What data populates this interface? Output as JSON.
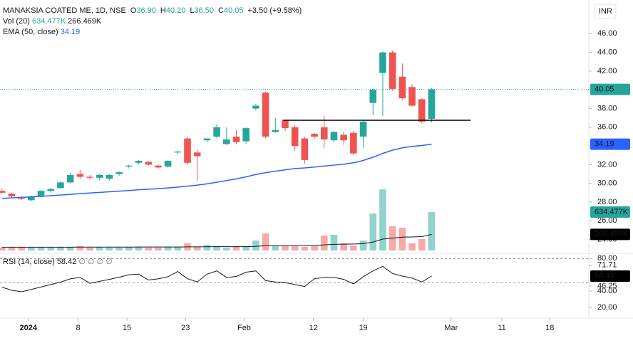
{
  "chart_data": {
    "type": "candlestick",
    "header": {
      "symbol": "MANAKSIA COATED ME, 1D, NSE",
      "ohlc": [
        "O",
        "36.90",
        "H",
        "40.20",
        "L",
        "36.50",
        "C",
        "40.05",
        "+3.50 (+9.58%)"
      ],
      "vol": "Vol (20)",
      "vol_value": "634.477K",
      "vol_ma_value": "266.469K",
      "ema": "EMA (50, close)",
      "rsi": "RSI (14, close)",
      "rsi_extra": "∅ ∅ ∅ ∅"
    },
    "currency": "INR",
    "up_color": "#26a69a",
    "down_color": "#ef5350",
    "ema_color": "#2962ff",
    "line_color": "#131722",
    "open": [
      29.2,
      28.9,
      28.4,
      28.2,
      28.6,
      29.2,
      29.5,
      30.1,
      31.0,
      30.7,
      30.6,
      30.5,
      31.0,
      31.8,
      32.2,
      32.3,
      31.9,
      31.8,
      33.3,
      34.8,
      33.3,
      34.6,
      35.0,
      34.2,
      35.0,
      34.5,
      38.0,
      39.7,
      35.5,
      36.8,
      36.0,
      34.8,
      35.3,
      36.0,
      34.6,
      35.2,
      35.4,
      35.0,
      38.6,
      41.8,
      44.0,
      41.4,
      40.3,
      39.0,
      36.9
    ],
    "high": [
      29.4,
      29.0,
      28.6,
      28.7,
      29.3,
      29.5,
      30.2,
      31.1,
      31.4,
      30.9,
      31.0,
      31.0,
      31.3,
      32.0,
      32.5,
      32.4,
      32.0,
      32.5,
      33.5,
      35.0,
      33.6,
      34.8,
      36.3,
      36.0,
      35.7,
      36.0,
      38.5,
      39.8,
      37.0,
      36.8,
      36.2,
      35.0,
      35.4,
      37.2,
      35.6,
      35.5,
      35.6,
      36.8,
      40.1,
      44.1,
      44.2,
      42.8,
      40.6,
      39.1,
      40.2
    ],
    "low": [
      28.9,
      28.5,
      28.2,
      28.1,
      28.5,
      29.0,
      29.4,
      30.0,
      30.5,
      30.4,
      30.3,
      30.3,
      30.8,
      31.6,
      32.0,
      31.9,
      31.6,
      31.7,
      33.1,
      32.0,
      30.3,
      34.4,
      34.8,
      34.1,
      34.2,
      34.2,
      37.8,
      34.8,
      35.4,
      35.6,
      33.5,
      32.1,
      34.8,
      33.8,
      34.4,
      34.1,
      33.0,
      33.8,
      37.3,
      37.2,
      39.9,
      38.9,
      38.2,
      36.4,
      36.5
    ],
    "close": [
      29.0,
      28.6,
      28.3,
      28.6,
      29.2,
      29.4,
      30.1,
      30.9,
      30.7,
      30.6,
      30.9,
      30.9,
      31.2,
      31.9,
      32.4,
      32.0,
      31.7,
      32.4,
      33.4,
      32.2,
      32.9,
      34.8,
      36.0,
      34.7,
      34.4,
      35.9,
      38.3,
      35.0,
      35.7,
      35.9,
      34.0,
      32.5,
      35.0,
      34.7,
      35.5,
      34.6,
      33.2,
      36.6,
      40.0,
      44.0,
      40.1,
      39.1,
      38.3,
      36.6,
      40.05
    ],
    "volume": [
      47000,
      59000,
      59000,
      47000,
      59000,
      47000,
      59000,
      59000,
      70000,
      47000,
      59000,
      47000,
      47000,
      59000,
      59000,
      47000,
      47000,
      59000,
      59000,
      117000,
      59000,
      94000,
      70000,
      47000,
      59000,
      59000,
      164000,
      282000,
      70000,
      70000,
      70000,
      59000,
      70000,
      247000,
      258000,
      117000,
      82000,
      164000,
      611000,
      1010000,
      400000,
      376000,
      117000,
      188000,
      634477
    ],
    "volume_ma": [
      55000,
      55000,
      55000,
      55000,
      55000,
      55000,
      55000,
      55000,
      56000,
      56000,
      56000,
      56000,
      56000,
      56000,
      57000,
      57000,
      57000,
      57000,
      57000,
      60000,
      60000,
      62000,
      63000,
      63000,
      63000,
      63000,
      68000,
      79000,
      80000,
      81000,
      82000,
      82000,
      83000,
      92000,
      102000,
      105000,
      107000,
      112000,
      140000,
      188000,
      205000,
      220000,
      223000,
      229000,
      266469
    ],
    "volume_ylim": [
      0,
      4140000
    ],
    "ema": [
      28.4,
      28.45,
      28.5,
      28.55,
      28.62,
      28.68,
      28.75,
      28.83,
      28.9,
      28.97,
      29.04,
      29.1,
      29.17,
      29.24,
      29.32,
      29.38,
      29.44,
      29.51,
      29.6,
      29.7,
      29.82,
      29.95,
      30.12,
      30.3,
      30.48,
      30.7,
      30.95,
      31.15,
      31.3,
      31.45,
      31.58,
      31.65,
      31.75,
      31.85,
      31.95,
      32.05,
      32.2,
      32.45,
      32.8,
      33.2,
      33.55,
      33.8,
      33.95,
      34.05,
      34.19
    ],
    "rsi": [
      44.8,
      41,
      39.2,
      42,
      45,
      48,
      51,
      55,
      56.8,
      49.6,
      52,
      54.4,
      57,
      60,
      60.8,
      53.6,
      55,
      57.6,
      64,
      55.2,
      51.2,
      60.8,
      64.8,
      56.8,
      58,
      63.2,
      64.8,
      52.8,
      51.2,
      50.4,
      48,
      45.6,
      55.2,
      56.8,
      56.8,
      54.4,
      48.8,
      57.6,
      64.8,
      70.4,
      61.6,
      58.4,
      56,
      51.2,
      58.42
    ],
    "rsi_ylim": [
      6.8,
      86.4
    ],
    "rsi_yticks": [
      {
        "value": 80,
        "label": "80.00"
      },
      {
        "value": 71.71,
        "label": "71.71"
      },
      {
        "value": 46.25,
        "label": "46.25"
      },
      {
        "value": 40,
        "label": "40.00"
      },
      {
        "value": 20,
        "label": "20.00"
      }
    ],
    "rsi_bands": [
      80,
      50
    ],
    "ylim": [
      22.6,
      49.6
    ],
    "yticks": [
      {
        "value": 24,
        "label": "24.00"
      },
      {
        "value": 26,
        "label": "26.00"
      },
      {
        "value": 28,
        "label": "28.00"
      },
      {
        "value": 30,
        "label": "30.00"
      },
      {
        "value": 32,
        "label": "32.00"
      },
      {
        "value": 34,
        "label": "34.00"
      },
      {
        "value": 36,
        "label": "36.00"
      },
      {
        "value": 38,
        "label": "38.00"
      },
      {
        "value": 40,
        "label": "40.00"
      },
      {
        "value": 42,
        "label": "42.00"
      },
      {
        "value": 44,
        "label": "44.00"
      },
      {
        "value": 46,
        "label": "46.00"
      }
    ],
    "xlim": [
      -0.2,
      60.1
    ],
    "xticks": [
      {
        "value": 2.7,
        "label": "2024"
      },
      {
        "value": 7.8,
        "label": "8"
      },
      {
        "value": 12.8,
        "label": "15"
      },
      {
        "value": 18.8,
        "label": "23"
      },
      {
        "value": 24.8,
        "label": "Feb"
      },
      {
        "value": 31.9,
        "label": "12"
      },
      {
        "value": 37,
        "label": "19"
      },
      {
        "value": 46,
        "label": "Mar"
      },
      {
        "value": 51.2,
        "label": "11"
      },
      {
        "value": 56.1,
        "label": "18"
      }
    ],
    "support_line": {
      "value": 36.75,
      "from": 28.8,
      "to": 48
    }
  }
}
